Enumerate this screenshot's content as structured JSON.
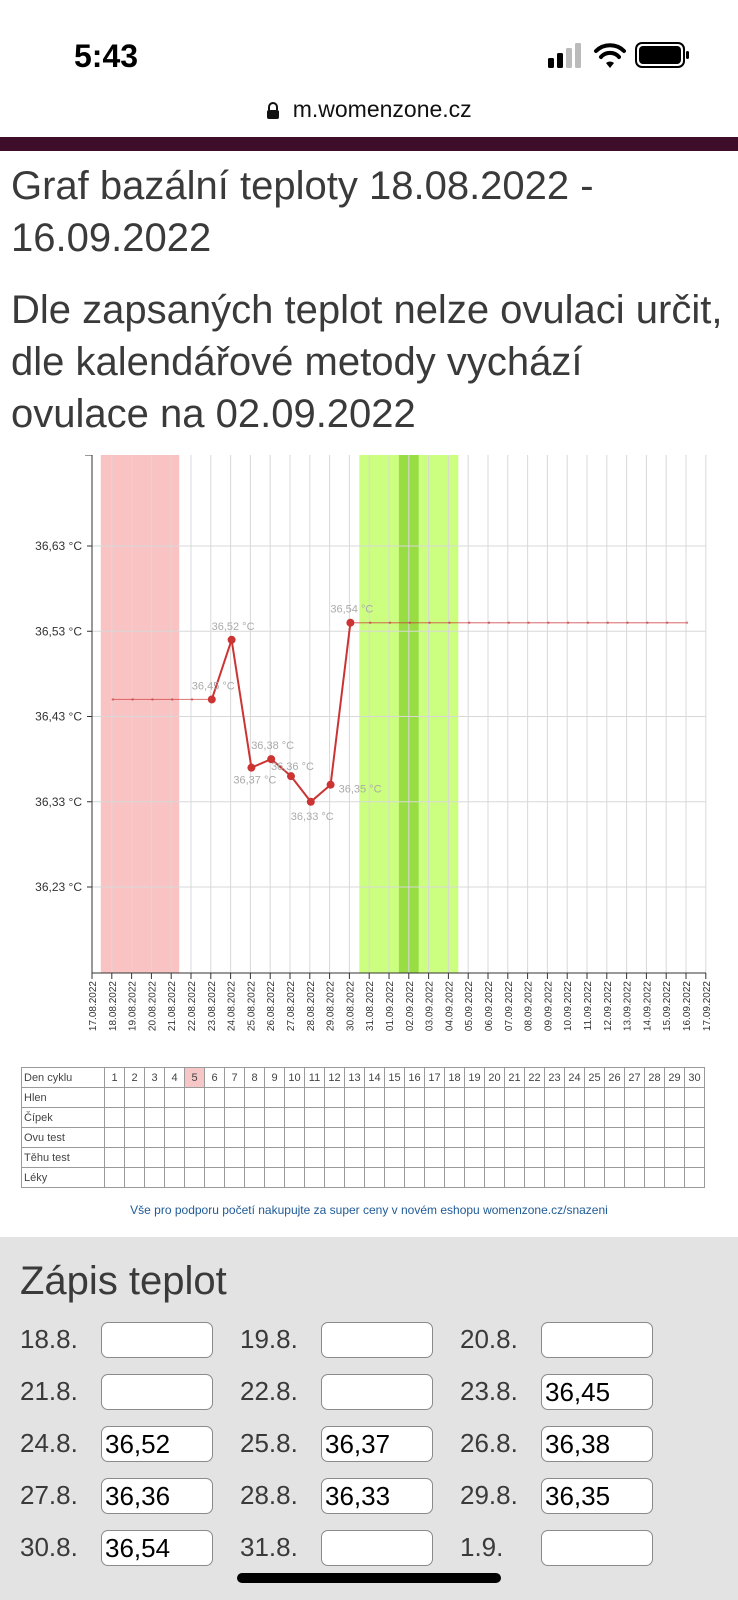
{
  "status_bar": {
    "time": "5:43"
  },
  "browser": {
    "url": "m.womenzone.cz"
  },
  "page": {
    "title": "Graf bazální teploty 18.08.2022 - 16.09.2022",
    "subtitle": "Dle zapsaných teplot nelze ovulaci určit, dle kalendářové metody vychází ovulace na 02.09.2022"
  },
  "chart_data": {
    "type": "line",
    "title": "",
    "ylabel": "",
    "xlabel": "",
    "ylim": [
      36.12,
      36.73
    ],
    "y_ticks": [
      "36,63 °C",
      "36,53 °C",
      "36,43 °C",
      "36,33 °C",
      "36,23 °C"
    ],
    "y_tick_values": [
      36.63,
      36.53,
      36.43,
      36.33,
      36.23
    ],
    "x_labels": [
      "17.08.2022",
      "18.08.2022",
      "19.08.2022",
      "20.08.2022",
      "21.08.2022",
      "22.08.2022",
      "23.08.2022",
      "24.08.2022",
      "25.08.2022",
      "26.08.2022",
      "27.08.2022",
      "28.08.2022",
      "29.08.2022",
      "30.08.2022",
      "31.08.2022",
      "01.09.2022",
      "02.09.2022",
      "03.09.2022",
      "04.09.2022",
      "05.09.2022",
      "06.09.2022",
      "07.09.2022",
      "08.09.2022",
      "09.09.2022",
      "10.09.2022",
      "11.09.2022",
      "12.09.2022",
      "13.09.2022",
      "14.09.2022",
      "15.09.2022",
      "16.09.2022",
      "17.09.2022"
    ],
    "series": [
      {
        "dates": [
          "23.08.2022",
          "24.08.2022",
          "25.08.2022",
          "26.08.2022",
          "27.08.2022",
          "28.08.2022",
          "29.08.2022",
          "30.08.2022"
        ],
        "values": [
          36.45,
          36.52,
          36.37,
          36.38,
          36.36,
          36.33,
          36.35,
          36.54
        ],
        "labels": [
          "36,45 °C",
          "36,52 °C",
          "36,37 °C",
          "36,38 °C",
          "36,36 °C",
          "36,33 °C",
          "36,35 °C",
          "36,54 °C"
        ]
      }
    ],
    "baseline_before": {
      "from": "18.08.2022",
      "to": "23.08.2022",
      "value": 36.45
    },
    "baseline_after": {
      "from": "30.08.2022",
      "to": "16.09.2022",
      "value": 36.54
    },
    "bands": [
      {
        "from": "18.08.2022",
        "to": "21.08.2022",
        "color": "#f9c3c3"
      },
      {
        "from": "31.08.2022",
        "to": "04.09.2022",
        "color": "#ccff80"
      },
      {
        "from": "02.09.2022",
        "to": "02.09.2022",
        "color": "#99dd44"
      }
    ],
    "grid": true,
    "line_color": "#cc3333"
  },
  "cycle_table": {
    "header": "Den cyklu",
    "days": [
      "1",
      "2",
      "3",
      "4",
      "5",
      "6",
      "7",
      "8",
      "9",
      "10",
      "11",
      "12",
      "13",
      "14",
      "15",
      "16",
      "17",
      "18",
      "19",
      "20",
      "21",
      "22",
      "23",
      "24",
      "25",
      "26",
      "27",
      "28",
      "29",
      "30"
    ],
    "highlight_day": "5",
    "rows": [
      "Hlen",
      "Čípek",
      "Ovu test",
      "Těhu test",
      "Léky"
    ]
  },
  "promo": "Vše pro podporu početí nakupujte za super ceny v novém eshopu womenzone.cz/snazeni",
  "entries": {
    "title": "Zápis teplot",
    "items": [
      {
        "date": "18.8.",
        "value": ""
      },
      {
        "date": "19.8.",
        "value": ""
      },
      {
        "date": "20.8.",
        "value": ""
      },
      {
        "date": "21.8.",
        "value": ""
      },
      {
        "date": "22.8.",
        "value": ""
      },
      {
        "date": "23.8.",
        "value": "36,45"
      },
      {
        "date": "24.8.",
        "value": "36,52"
      },
      {
        "date": "25.8.",
        "value": "36,37"
      },
      {
        "date": "26.8.",
        "value": "36,38"
      },
      {
        "date": "27.8.",
        "value": "36,36"
      },
      {
        "date": "28.8.",
        "value": "36,33"
      },
      {
        "date": "29.8.",
        "value": "36,35"
      },
      {
        "date": "30.8.",
        "value": "36,54"
      },
      {
        "date": "31.8.",
        "value": ""
      },
      {
        "date": "1.9.",
        "value": ""
      }
    ]
  }
}
